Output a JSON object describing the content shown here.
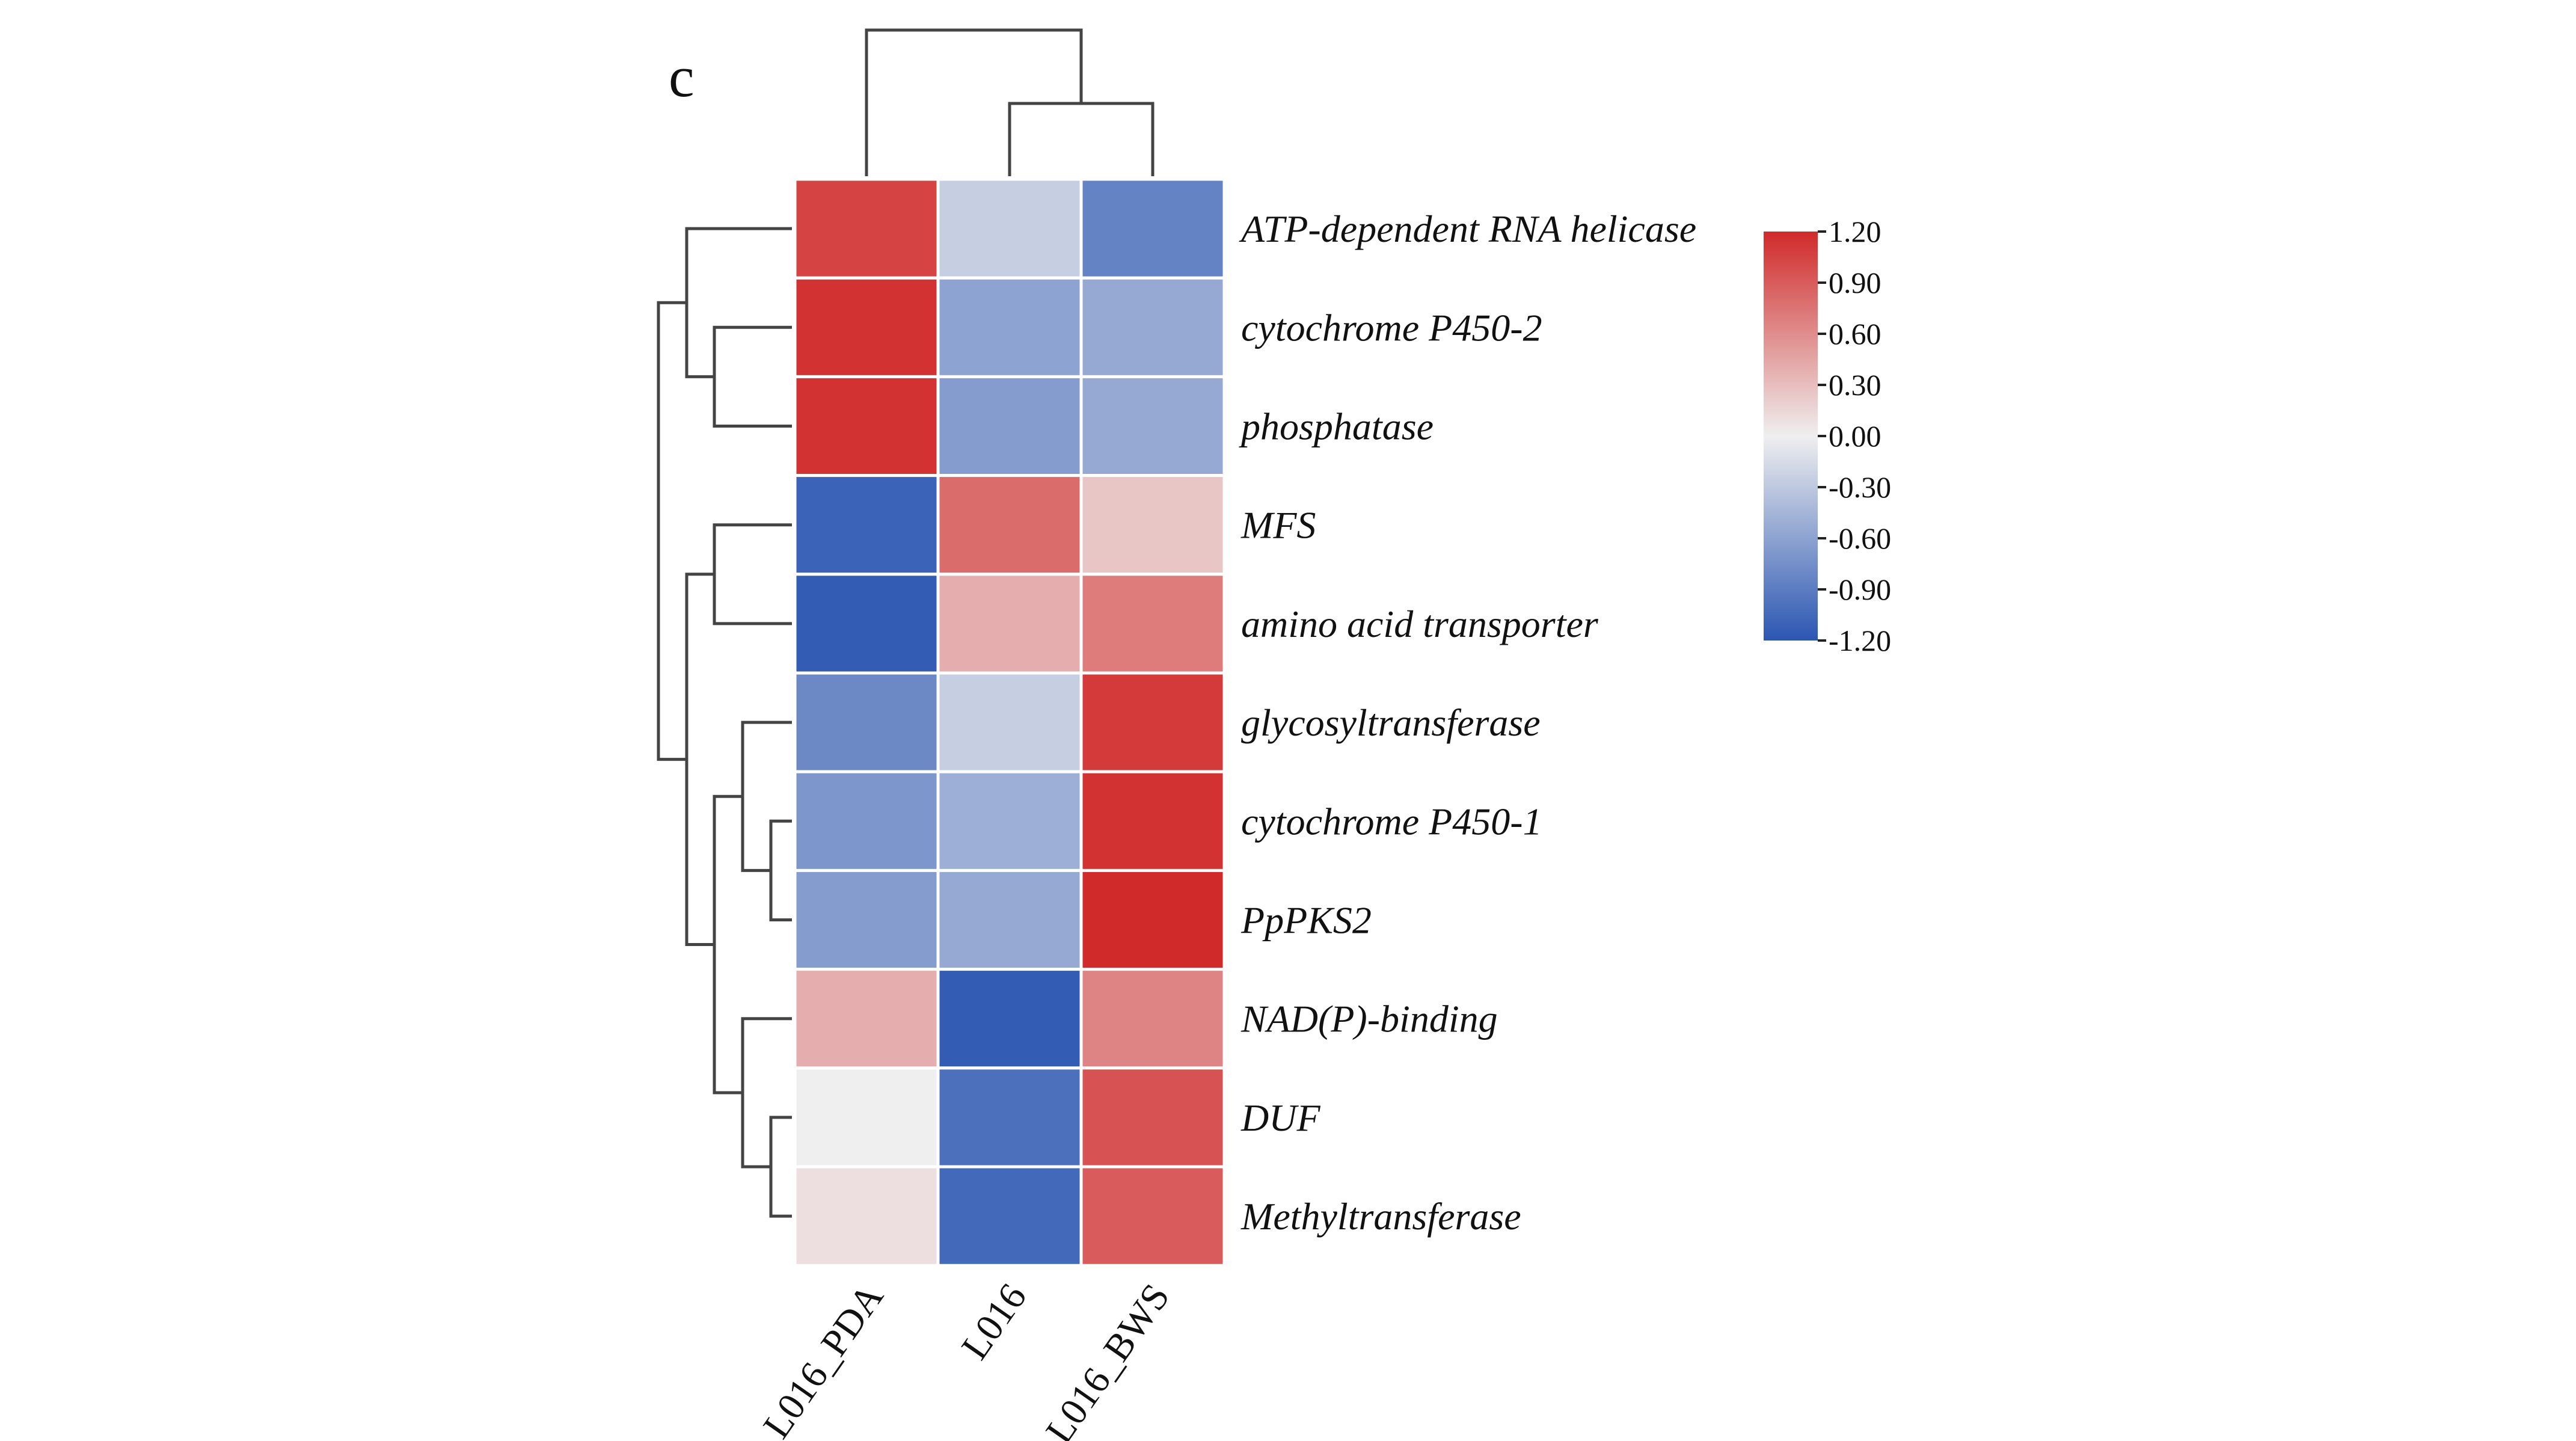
{
  "panel_label": "c",
  "chart_data": {
    "type": "heatmap",
    "title": "",
    "columns": [
      "L016_PDA",
      "L016",
      "L016_BWS"
    ],
    "rows": [
      "ATP-dependent RNA helicase",
      "cytochrome P450-2",
      "phosphatase",
      "MFS",
      "amino acid transporter",
      "glycosyltransferase",
      "cytochrome P450-1",
      "PpPKS2",
      "NAD(P)-binding",
      "DUF",
      "Methyltransferase"
    ],
    "values": [
      [
        1.05,
        -0.25,
        -0.85
      ],
      [
        1.15,
        -0.6,
        -0.55
      ],
      [
        1.15,
        -0.65,
        -0.55
      ],
      [
        -1.1,
        0.8,
        0.25
      ],
      [
        -1.15,
        0.4,
        0.7
      ],
      [
        -0.8,
        -0.25,
        1.1
      ],
      [
        -0.7,
        -0.5,
        1.15
      ],
      [
        -0.65,
        -0.55,
        1.2
      ],
      [
        0.4,
        -1.15,
        0.65
      ],
      [
        0.0,
        -1.0,
        0.95
      ],
      [
        0.1,
        -1.05,
        0.9
      ]
    ],
    "color_scale": {
      "min": -1.2,
      "max": 1.2,
      "low_color": "#2b56b2",
      "mid_color": "#efefef",
      "high_color": "#d12a2a",
      "ticks": [
        "1.20",
        "0.90",
        "0.60",
        "0.30",
        "0.00",
        "-0.30",
        "-0.60",
        "-0.90",
        "-1.20"
      ]
    },
    "col_dendrogram": {
      "merges": [
        {
          "a": "L016",
          "b": "L016_BWS",
          "height": 1
        },
        {
          "a": "L016_PDA",
          "b": "cluster_1",
          "height": 2
        }
      ]
    },
    "row_dendrogram": {
      "merges": [
        {
          "a": "cytochrome P450-2",
          "b": "phosphatase",
          "height": 1
        },
        {
          "a": "ATP-dependent RNA helicase",
          "b": "cluster_1",
          "height": 2
        },
        {
          "a": "MFS",
          "b": "amino acid transporter",
          "height": 1
        },
        {
          "a": "cytochrome P450-1",
          "b": "PpPKS2",
          "height": 0.5
        },
        {
          "a": "glycosyltransferase",
          "b": "cluster_4",
          "height": 1
        },
        {
          "a": "DUF",
          "b": "Methyltransferase",
          "height": 0.5
        },
        {
          "a": "NAD(P)-binding",
          "b": "cluster_6",
          "height": 1
        },
        {
          "a": "cluster_5",
          "b": "cluster_7",
          "height": 1.5
        },
        {
          "a": "cluster_3",
          "b": "cluster_8",
          "height": 2
        },
        {
          "a": "cluster_2",
          "b": "cluster_9",
          "height": 2.5
        }
      ]
    }
  }
}
